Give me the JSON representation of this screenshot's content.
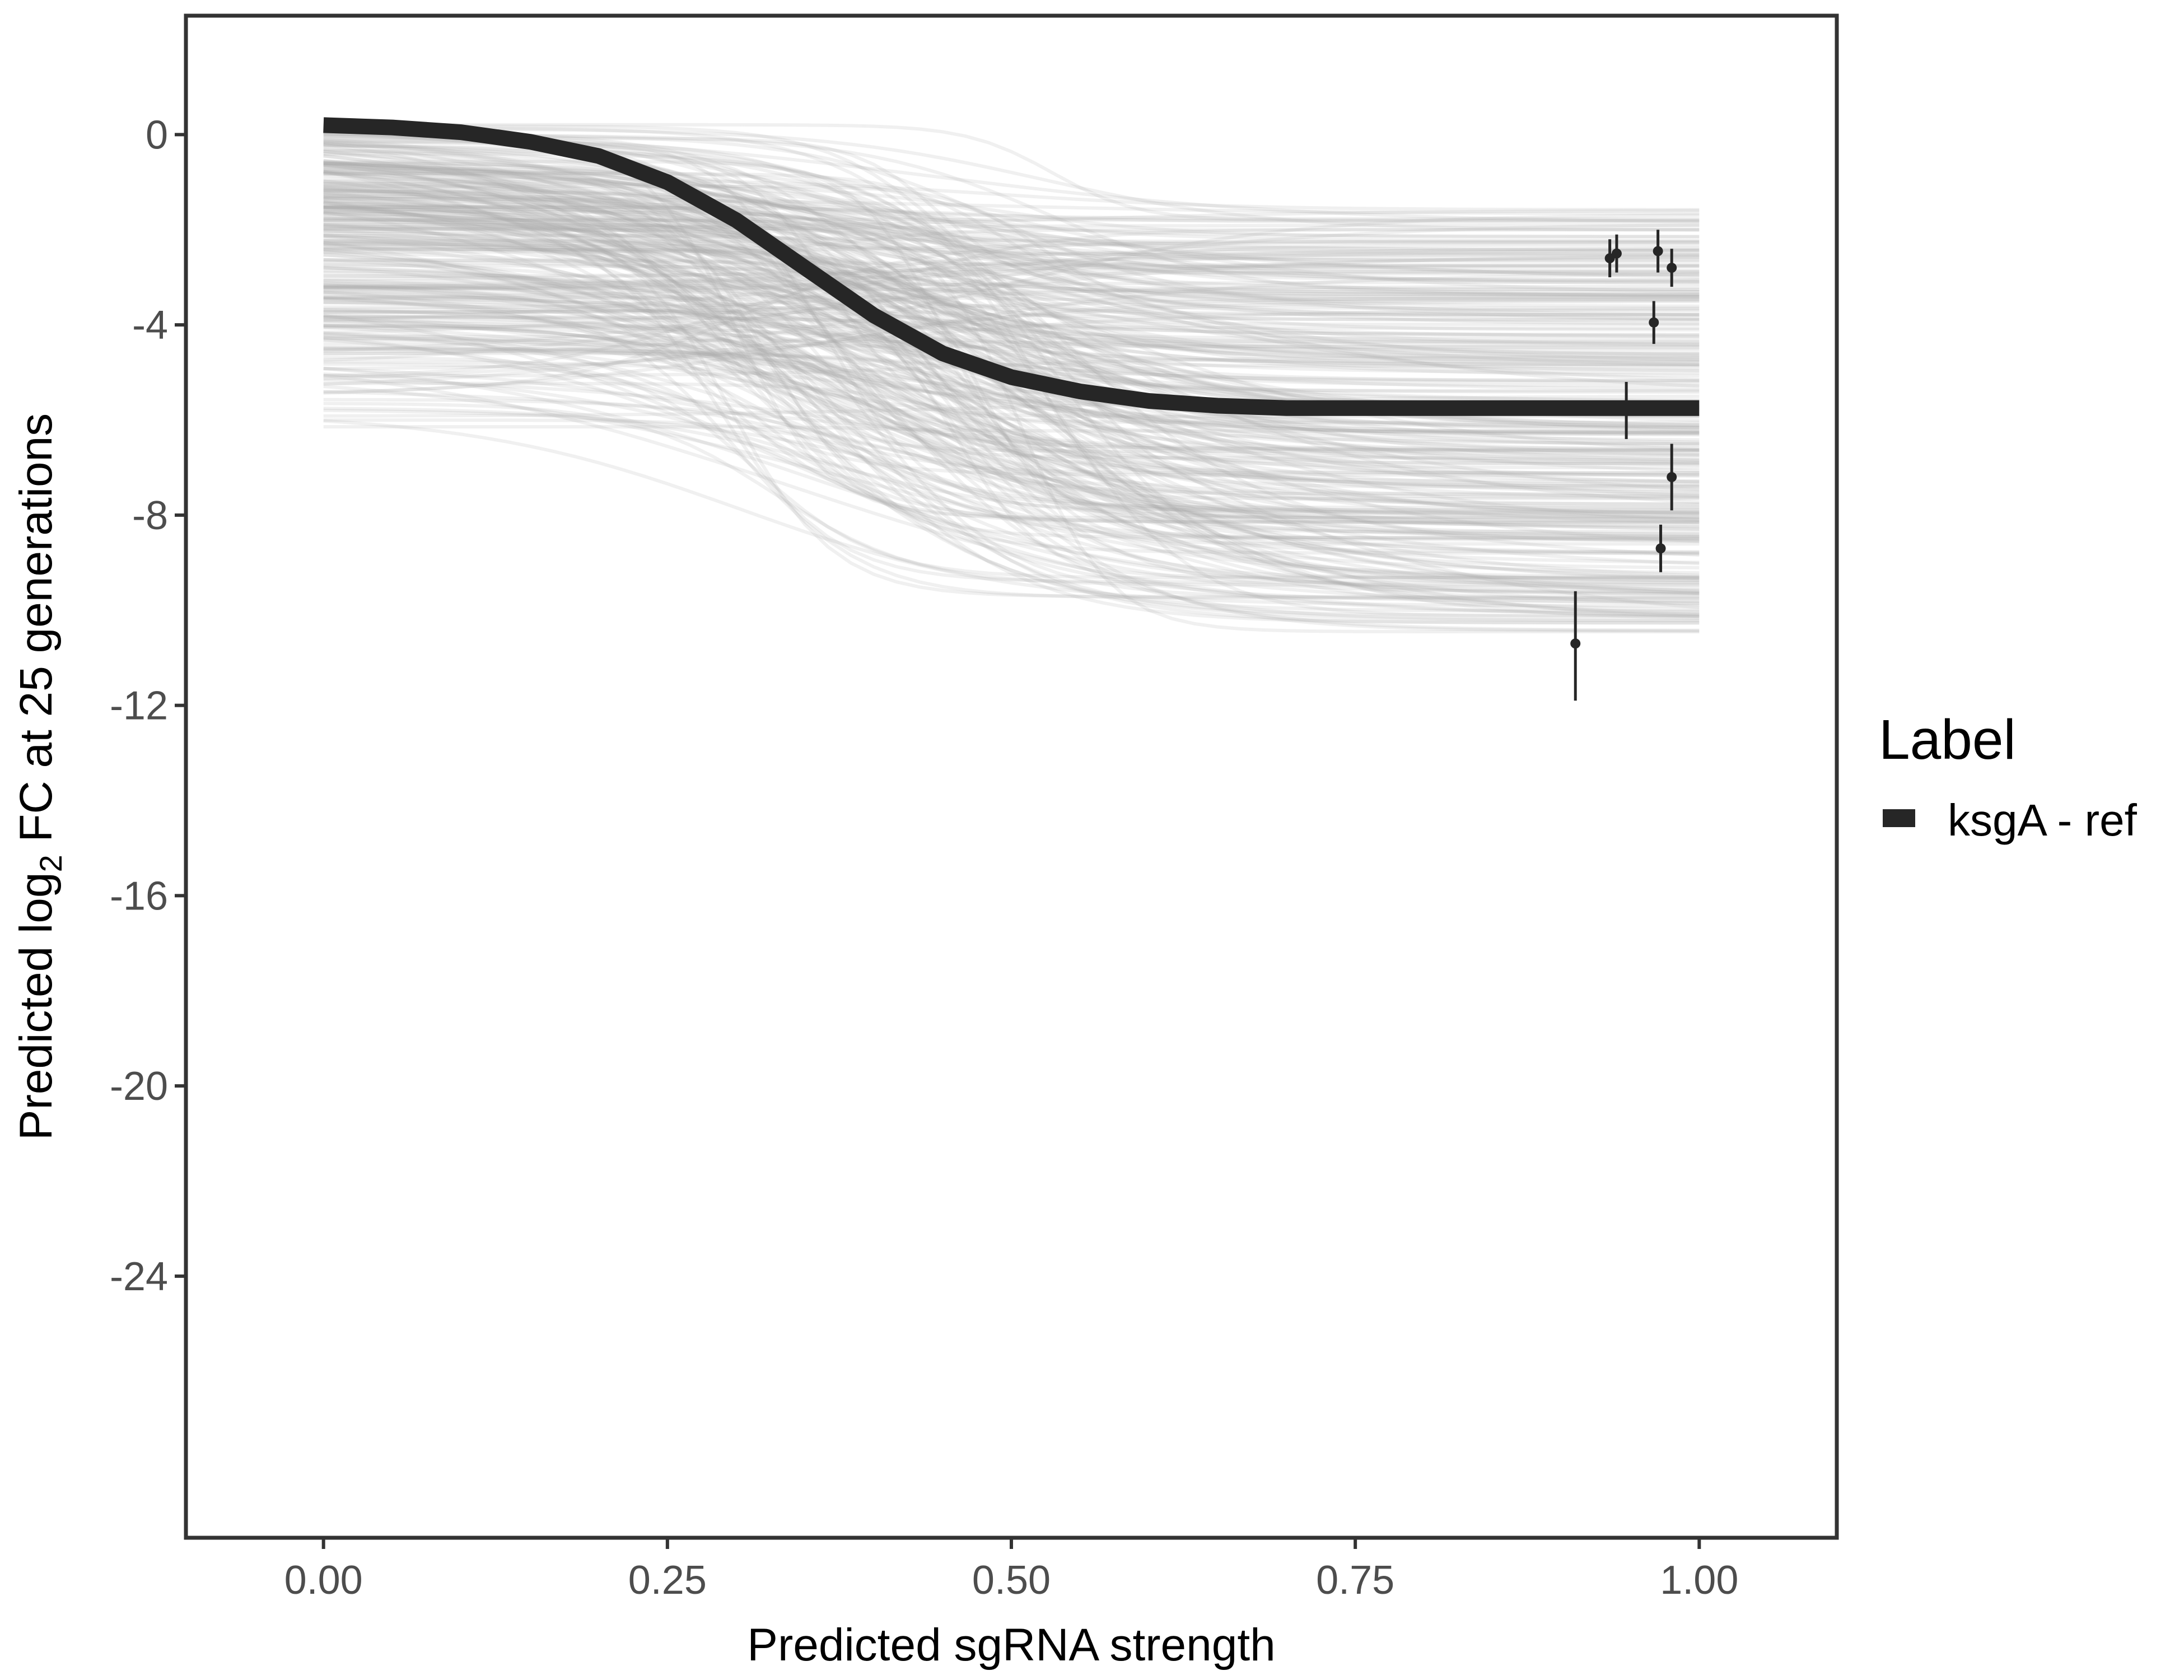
{
  "chart_data": {
    "type": "line",
    "title": "",
    "xlabel": "Predicted sgRNA strength",
    "ylabel_prefix": "Predicted  log",
    "ylabel_subscript": "2",
    "ylabel_suffix": " FC at 25 generations",
    "xlim": [
      -0.1,
      1.1
    ],
    "ylim": [
      -29.5,
      2.5
    ],
    "x_ticks": [
      0.0,
      0.25,
      0.5,
      0.75,
      1.0
    ],
    "x_tick_labels": [
      "0.00",
      "0.25",
      "0.50",
      "0.75",
      "1.00"
    ],
    "y_ticks": [
      0,
      -4,
      -8,
      -12,
      -16,
      -20,
      -24
    ],
    "y_tick_labels": [
      "0",
      "-4",
      "-8",
      "-12",
      "-16",
      "-20",
      "-24"
    ],
    "grid": false,
    "legend": {
      "title": "Label",
      "position": "right",
      "entries": [
        {
          "label": "ksgA - ref",
          "color": "#262626"
        }
      ]
    },
    "series": [
      {
        "name": "ksgA - ref",
        "kind": "fitted-curve",
        "color": "#262626",
        "x": [
          0.0,
          0.05,
          0.1,
          0.15,
          0.2,
          0.25,
          0.3,
          0.35,
          0.4,
          0.45,
          0.5,
          0.55,
          0.6,
          0.65,
          0.7,
          0.75,
          0.8,
          0.85,
          0.9,
          0.95,
          1.0
        ],
        "y": [
          0.2,
          0.15,
          0.05,
          -0.15,
          -0.45,
          -1.0,
          -1.8,
          -2.8,
          -3.8,
          -4.6,
          -5.1,
          -5.4,
          -5.6,
          -5.7,
          -5.75,
          -5.75,
          -5.75,
          -5.75,
          -5.75,
          -5.75,
          -5.75
        ]
      },
      {
        "kind": "posterior-draws",
        "color": "#aaaaaa",
        "draw_count": 300,
        "start_range": [
          -6.3,
          0.25
        ],
        "end_range": [
          -10.5,
          -1.5
        ],
        "midpoint_range": [
          0.28,
          0.55
        ]
      },
      {
        "kind": "observed-points-with-error",
        "color": "#262626",
        "points": [
          {
            "x": 0.91,
            "y": -10.7,
            "ymin": -11.9,
            "ymax": -9.6
          },
          {
            "x": 0.935,
            "y": -2.6,
            "ymin": -3.0,
            "ymax": -2.2
          },
          {
            "x": 0.94,
            "y": -2.5,
            "ymin": -2.9,
            "ymax": -2.1
          },
          {
            "x": 0.947,
            "y": -5.8,
            "ymin": -6.4,
            "ymax": -5.2
          },
          {
            "x": 0.967,
            "y": -3.95,
            "ymin": -4.4,
            "ymax": -3.5
          },
          {
            "x": 0.97,
            "y": -2.45,
            "ymin": -2.9,
            "ymax": -2.0
          },
          {
            "x": 0.972,
            "y": -8.7,
            "ymin": -9.2,
            "ymax": -8.2
          },
          {
            "x": 0.98,
            "y": -2.8,
            "ymin": -3.2,
            "ymax": -2.4
          },
          {
            "x": 0.98,
            "y": -7.2,
            "ymin": -7.9,
            "ymax": -6.5
          }
        ]
      }
    ]
  }
}
